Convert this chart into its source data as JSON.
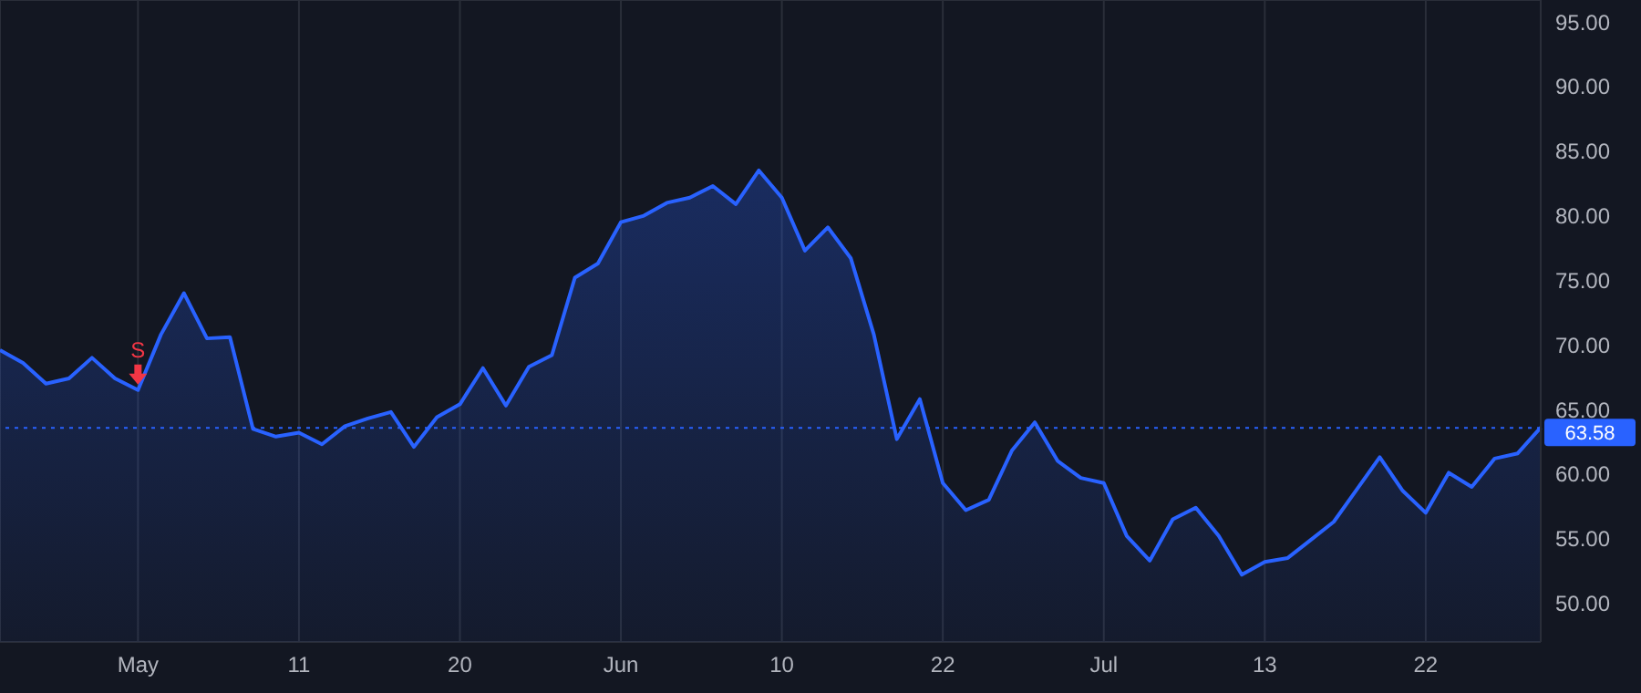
{
  "chart_data": {
    "type": "area",
    "categories": [
      null,
      null,
      null,
      null,
      null,
      null,
      "May",
      null,
      null,
      null,
      null,
      null,
      null,
      "11",
      null,
      null,
      null,
      null,
      null,
      null,
      "20",
      null,
      null,
      null,
      null,
      null,
      null,
      "Jun",
      null,
      null,
      null,
      null,
      null,
      null,
      "10",
      null,
      null,
      null,
      null,
      null,
      null,
      "22",
      null,
      null,
      null,
      null,
      null,
      null,
      "Jul",
      null,
      null,
      null,
      null,
      null,
      null,
      "13",
      null,
      null,
      null,
      null,
      null,
      null,
      "22",
      null,
      null,
      null,
      null,
      null
    ],
    "series": [
      {
        "color": "#2962ff",
        "values": [
          69.6,
          68.6,
          67.0,
          67.4,
          69.0,
          67.4,
          66.5,
          70.8,
          74.0,
          70.5,
          70.6,
          63.5,
          62.9,
          63.2,
          62.3,
          63.7,
          64.3,
          64.8,
          62.1,
          64.4,
          65.4,
          68.2,
          65.3,
          68.3,
          69.2,
          75.2,
          76.3,
          79.5,
          80.0,
          81.0,
          81.4,
          82.3,
          80.9,
          83.5,
          81.4,
          77.3,
          79.1,
          76.7,
          70.8,
          62.7,
          65.8,
          59.3,
          57.2,
          58.0,
          61.8,
          64.0,
          61.0,
          59.7,
          59.3,
          55.2,
          53.3,
          56.5,
          57.4,
          55.2,
          52.2,
          53.2,
          53.5,
          54.9,
          56.3,
          58.8,
          61.3,
          58.7,
          57.0,
          60.1,
          59.0,
          61.2,
          61.6,
          63.6
        ]
      }
    ],
    "ylim": [
      47,
      96.7
    ],
    "yticks": [
      {
        "value": 50,
        "label": "50.00"
      },
      {
        "value": 55,
        "label": "55.00"
      },
      {
        "value": 60,
        "label": "60.00"
      },
      {
        "value": 65,
        "label": "65.00"
      },
      {
        "value": 70,
        "label": "70.00"
      },
      {
        "value": 75,
        "label": "75.00"
      },
      {
        "value": 80,
        "label": "80.00"
      },
      {
        "value": 85,
        "label": "85.00"
      },
      {
        "value": 90,
        "label": "90.00"
      },
      {
        "value": 95,
        "label": "95.00"
      }
    ],
    "grid": true,
    "ref_lines": [
      {
        "axis": "y",
        "value": 63.58,
        "label": "63.58",
        "color": "#2962ff",
        "line_style": "dotted"
      }
    ],
    "annotations": [
      {
        "text": "S",
        "x": "May",
        "y": 66.5
      }
    ]
  }
}
